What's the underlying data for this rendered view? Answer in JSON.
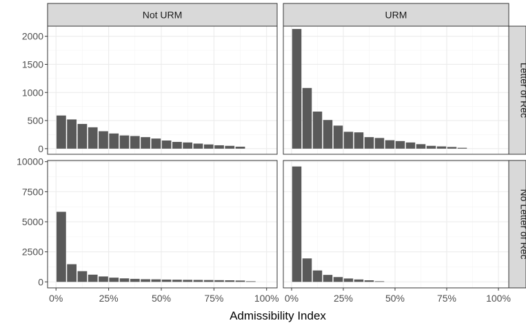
{
  "chart_data": {
    "type": "bar",
    "title": "",
    "xlabel": "Admissibility Index",
    "ylabel": "",
    "bar_color": "#595959",
    "x_ticks": [
      0,
      25,
      50,
      75,
      100
    ],
    "x_tick_labels": [
      "0%",
      "25%",
      "50%",
      "75%",
      "100%"
    ],
    "xlim": [
      -4,
      105
    ],
    "bin_centers": [
      2.5,
      7.5,
      12.5,
      17.5,
      22.5,
      27.5,
      32.5,
      37.5,
      42.5,
      47.5,
      52.5,
      57.5,
      62.5,
      67.5,
      72.5,
      77.5,
      82.5,
      87.5,
      92.5,
      97.5
    ],
    "column_facets": [
      "Not URM",
      "URM"
    ],
    "row_facets": [
      {
        "label": "Letter of Rec",
        "ylim": [
          -100,
          2180
        ],
        "y_ticks": [
          0,
          500,
          1000,
          1500,
          2000
        ],
        "y_tick_labels": [
          "0",
          "500",
          "1000",
          "1500",
          "2000"
        ]
      },
      {
        "label": "No Letter of Rec",
        "ylim": [
          -500,
          10100
        ],
        "y_ticks": [
          0,
          2500,
          5000,
          7500,
          10000
        ],
        "y_tick_labels": [
          "0",
          "2500",
          "5000",
          "7500",
          "10000"
        ]
      }
    ],
    "panels": [
      {
        "column": "Not URM",
        "row": "Letter of Rec",
        "values": [
          590,
          520,
          440,
          380,
          310,
          270,
          235,
          225,
          205,
          180,
          145,
          120,
          110,
          90,
          75,
          60,
          50,
          35,
          0,
          0
        ]
      },
      {
        "column": "URM",
        "row": "Letter of Rec",
        "values": [
          2130,
          1080,
          660,
          510,
          410,
          300,
          290,
          205,
          190,
          150,
          135,
          110,
          80,
          50,
          40,
          30,
          15,
          0,
          0,
          0
        ]
      },
      {
        "column": "Not URM",
        "row": "No Letter of Rec",
        "values": [
          5830,
          1470,
          890,
          600,
          450,
          350,
          290,
          250,
          220,
          210,
          190,
          180,
          170,
          160,
          150,
          140,
          130,
          110,
          50,
          0
        ]
      },
      {
        "column": "URM",
        "row": "No Letter of Rec",
        "values": [
          9600,
          1950,
          950,
          580,
          400,
          280,
          200,
          130,
          50,
          0,
          0,
          0,
          0,
          0,
          0,
          0,
          0,
          0,
          0,
          0
        ]
      }
    ]
  }
}
